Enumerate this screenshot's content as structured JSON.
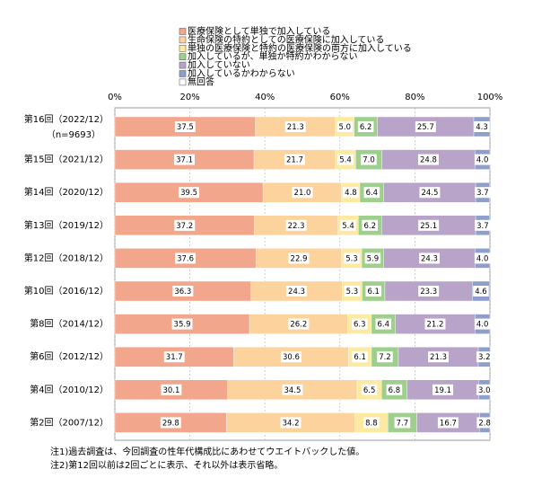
{
  "chart_data": {
    "type": "stacked-bar-horizontal",
    "categories": [
      "第16回（2022/12）",
      "第15回（2021/12）",
      "第14回（2020/12）",
      "第13回（2019/12）",
      "第12回（2018/12）",
      "第10回（2016/12）",
      "第8回（2014/12）",
      "第6回（2012/12）",
      "第4回（2010/12）",
      "第2回（2007/12）"
    ],
    "category_note": "（n=9693）",
    "series": [
      {
        "name": "医療保険として単独で加入している",
        "color": "#f2a68c",
        "values": [
          37.5,
          37.1,
          39.5,
          37.2,
          37.6,
          36.3,
          35.9,
          31.7,
          30.1,
          29.8
        ]
      },
      {
        "name": "生命保険の特約としての医療保険に加入している",
        "color": "#fcd39d",
        "values": [
          21.3,
          21.7,
          21.0,
          22.3,
          22.9,
          24.3,
          26.2,
          30.6,
          34.5,
          34.2
        ],
        "value_labels": [
          "21.3",
          "21.7",
          "21.0",
          "22.3",
          "22.9",
          "24.3",
          "26.2",
          "30.6",
          "34.5",
          "34.2"
        ]
      },
      {
        "name": "単独の医療保険と特約の医療保険の両方に加入している",
        "color": "#fdeaa2",
        "values": [
          5.0,
          5.4,
          4.8,
          5.4,
          5.3,
          5.3,
          6.3,
          6.1,
          6.5,
          8.8
        ],
        "value_labels": [
          "5.0",
          "5.4",
          "4.8",
          "5.4",
          "5.3",
          "5.3",
          "6.3",
          "6.1",
          "6.5",
          "8.8"
        ]
      },
      {
        "name": "加入しているが、単独か特約かわからない",
        "color": "#9fcf8c",
        "values": [
          6.2,
          7.0,
          6.4,
          6.2,
          5.9,
          6.1,
          6.4,
          7.2,
          6.8,
          7.7
        ],
        "value_labels": [
          "6.2",
          "7.0",
          "6.4",
          "6.2",
          "5.9",
          "6.1",
          "6.4",
          "7.2",
          "6.8",
          "7.7"
        ]
      },
      {
        "name": "加入していない",
        "color": "#b9a4c9",
        "values": [
          25.7,
          24.8,
          24.5,
          25.1,
          24.3,
          23.3,
          21.2,
          21.3,
          19.1,
          16.7
        ]
      },
      {
        "name": "加入しているかわからない",
        "color": "#8e9fcb",
        "values": [
          4.3,
          4.0,
          3.7,
          3.7,
          4.0,
          4.6,
          4.0,
          3.2,
          3.0,
          2.8
        ],
        "value_labels": [
          "4.3",
          "4.0",
          "3.7",
          "3.7",
          "4.0",
          "4.6",
          "4.0",
          "3.2",
          "3.0",
          "2.8"
        ]
      },
      {
        "name": "無回答",
        "color": "#ffffff",
        "values": [
          0,
          0,
          0,
          0,
          0,
          0,
          0,
          0,
          0,
          0
        ],
        "data_labels": false
      }
    ],
    "xlim": [
      0,
      100
    ],
    "xticks": [
      {
        "value": 0,
        "label": "0%"
      },
      {
        "value": 20,
        "label": "20%"
      },
      {
        "value": 40,
        "label": "40%"
      },
      {
        "value": 60,
        "label": "60%"
      },
      {
        "value": 80,
        "label": "80%"
      },
      {
        "value": 100,
        "label": "100%"
      }
    ],
    "grid": true,
    "notes": [
      "注1)過去調査は、今回調査の性年代構成比にあわせてウエイトバックした値。",
      "注2)第12回以前は2回ごとに表示、それ以外は表示省略。"
    ]
  }
}
